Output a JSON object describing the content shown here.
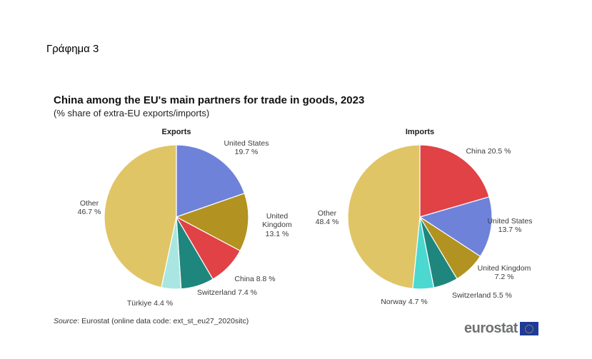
{
  "page": {
    "heading": "Γράφημα 3"
  },
  "figure": {
    "title": "China among the EU's main partners for trade in goods, 2023",
    "subtitle": "(% share of extra-EU exports/imports)",
    "source_prefix": "Source",
    "source_rest": ":  Eurostat (online data code: ext_st_eu27_2020sitc)",
    "logo_text": "eurostat"
  },
  "chart_data": [
    {
      "type": "pie",
      "title": "Exports",
      "unit": "% share of extra-EU exports",
      "start_angle": "12 o'clock",
      "direction": "clockwise",
      "slices": [
        {
          "name": "United States",
          "value": 19.7,
          "value_label": "19.7 %",
          "color": "#6e82da"
        },
        {
          "name": "United Kingdom",
          "value": 13.1,
          "value_label": "13.1 %",
          "color": "#b29220"
        },
        {
          "name": "China",
          "value": 8.8,
          "value_label": "8.8 %",
          "color": "#e04246"
        },
        {
          "name": "Switzerland",
          "value": 7.4,
          "value_label": "7.4 %",
          "color": "#1f867d"
        },
        {
          "name": "Türkiye",
          "value": 4.4,
          "value_label": "4.4 %",
          "color": "#a9e6e2"
        },
        {
          "name": "Other",
          "value": 46.7,
          "value_label": "46.7 %",
          "color": "#e0c566"
        }
      ]
    },
    {
      "type": "pie",
      "title": "Imports",
      "unit": "% share of extra-EU imports",
      "start_angle": "12 o'clock",
      "direction": "clockwise",
      "slices": [
        {
          "name": "China",
          "value": 20.5,
          "value_label": "20.5 %",
          "color": "#e04246"
        },
        {
          "name": "United States",
          "value": 13.7,
          "value_label": "13.7 %",
          "color": "#6e82da"
        },
        {
          "name": "United Kingdom",
          "value": 7.2,
          "value_label": "7.2 %",
          "color": "#b29220"
        },
        {
          "name": "Switzerland",
          "value": 5.5,
          "value_label": "5.5 %",
          "color": "#1f867d"
        },
        {
          "name": "Norway",
          "value": 4.7,
          "value_label": "4.7 %",
          "color": "#4ad8d0"
        },
        {
          "name": "Other",
          "value": 48.4,
          "value_label": "48.4 %",
          "color": "#e0c566"
        }
      ]
    }
  ]
}
